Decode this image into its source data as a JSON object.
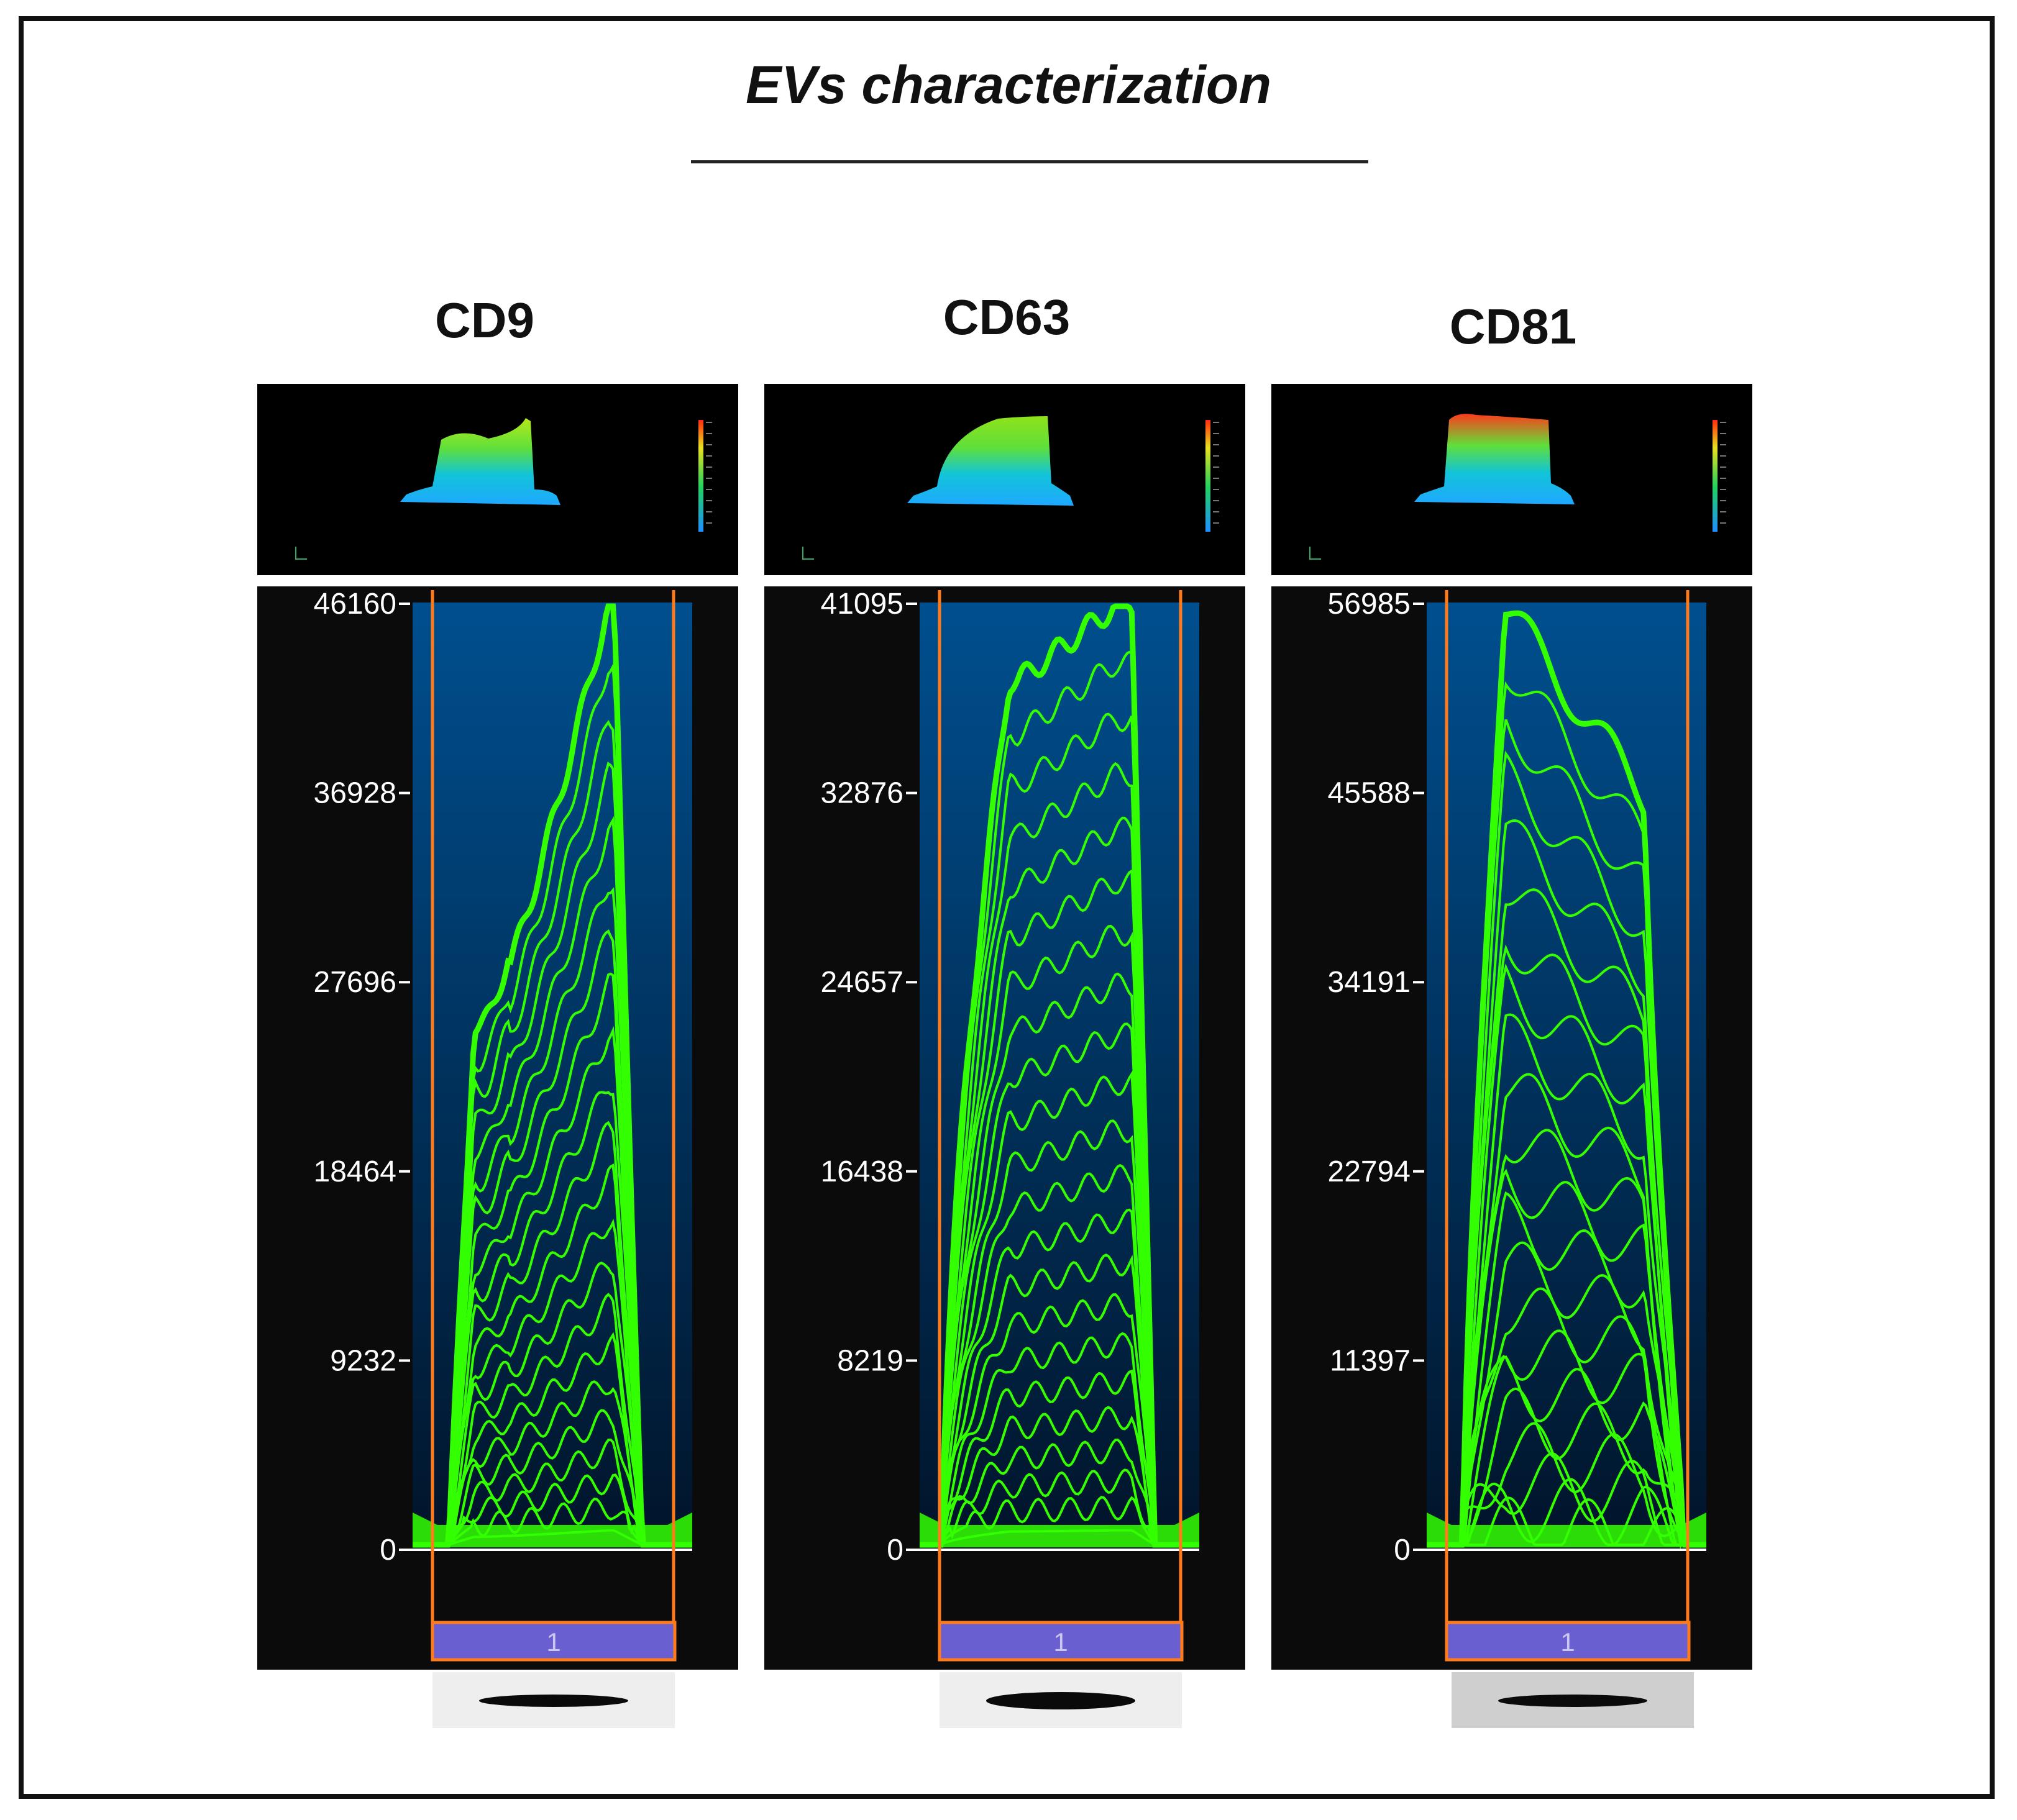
{
  "title": "EVs characterization",
  "chart_data": [
    {
      "type": "line",
      "title": "CD9",
      "y_ticks": [
        46160,
        36928,
        27696,
        18464,
        9232,
        0
      ],
      "ylim": [
        0,
        46160
      ],
      "peak": 46160,
      "lane_label": "1",
      "profile": "cd9"
    },
    {
      "type": "line",
      "title": "CD63",
      "y_ticks": [
        41095,
        32876,
        24657,
        16438,
        8219,
        0
      ],
      "ylim": [
        0,
        41095
      ],
      "peak": 41095,
      "lane_label": "1",
      "profile": "cd63"
    },
    {
      "type": "line",
      "title": "CD81",
      "y_ticks": [
        56985,
        45588,
        34191,
        22794,
        11397,
        0
      ],
      "ylim": [
        0,
        56985
      ],
      "peak": 56985,
      "lane_label": "1",
      "profile": "cd81"
    }
  ],
  "colors": {
    "trace": "#33ff00",
    "plot_bg_top": "#004f8f",
    "plot_bg_bottom": "#01142a",
    "panel_bg": "#0b0b0b",
    "marker": "#ff7a1a",
    "lane": "#6a5fd0"
  }
}
